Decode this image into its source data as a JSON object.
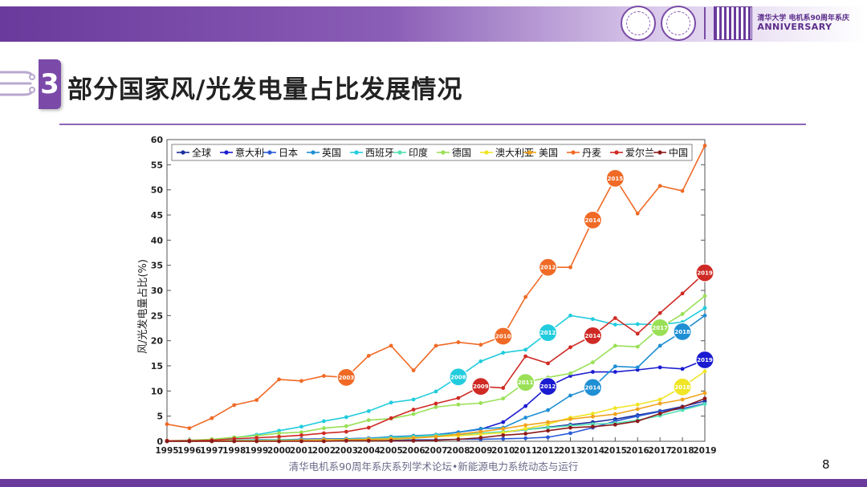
{
  "header": {
    "anniversary_cn": "清华大学 电机系90周年系庆",
    "anniversary_en": "ANNIVERSARY"
  },
  "slide": {
    "section_number": "3",
    "title": "部分国家风/光发电量占比发展情况",
    "footer": "清华电机系90周年系庆系列学术论坛•新能源电力系统动态与运行",
    "page_number": "8"
  },
  "chart_data": {
    "type": "line",
    "ylabel": "风/光发电量占比(%)",
    "xlabel": "",
    "ylim": [
      0,
      60
    ],
    "yticks": [
      0,
      5,
      10,
      15,
      20,
      25,
      30,
      35,
      40,
      45,
      50,
      55,
      60
    ],
    "grid": false,
    "legend_position": "top",
    "categories": [
      "1995",
      "1996",
      "1997",
      "1998",
      "1999",
      "2000",
      "2001",
      "2002",
      "2003",
      "2004",
      "2005",
      "2006",
      "2007",
      "2008",
      "2009",
      "2010",
      "2011",
      "2012",
      "2013",
      "2014",
      "2015",
      "2016",
      "2017",
      "2018",
      "2019"
    ],
    "series": [
      {
        "name": "全球",
        "color": "#1c2f9e",
        "values": [
          0.1,
          0.1,
          0.2,
          0.2,
          0.3,
          0.3,
          0.4,
          0.4,
          0.5,
          0.6,
          0.7,
          0.8,
          1.0,
          1.2,
          1.5,
          1.8,
          2.3,
          2.8,
          3.3,
          3.8,
          4.4,
          5.2,
          6.0,
          6.9,
          8.0
        ]
      },
      {
        "name": "意大利",
        "color": "#1b1bd1",
        "values": [
          0.0,
          0.0,
          0.1,
          0.1,
          0.1,
          0.2,
          0.4,
          0.5,
          0.5,
          0.6,
          0.8,
          1.0,
          1.3,
          1.8,
          2.4,
          3.8,
          7.0,
          10.9,
          13.0,
          13.8,
          13.8,
          14.2,
          14.7,
          14.4,
          16.2
        ]
      },
      {
        "name": "日本",
        "color": "#2a5bd6",
        "values": [
          0.0,
          0.0,
          0.0,
          0.0,
          0.1,
          0.1,
          0.1,
          0.1,
          0.2,
          0.2,
          0.2,
          0.3,
          0.3,
          0.4,
          0.4,
          0.5,
          0.6,
          0.8,
          1.6,
          2.7,
          4.0,
          5.0,
          5.9,
          6.5,
          7.5
        ]
      },
      {
        "name": "英国",
        "color": "#1f8fd4",
        "values": [
          0.1,
          0.1,
          0.2,
          0.2,
          0.3,
          0.3,
          0.3,
          0.4,
          0.5,
          0.6,
          0.9,
          1.1,
          1.3,
          1.8,
          2.5,
          2.7,
          4.7,
          6.2,
          9.1,
          10.7,
          14.9,
          14.7,
          19.0,
          21.8,
          25.0
        ]
      },
      {
        "name": "西班牙",
        "color": "#22ccdd",
        "values": [
          0.1,
          0.2,
          0.3,
          0.7,
          1.3,
          2.1,
          2.9,
          4.0,
          4.8,
          6.0,
          7.7,
          8.3,
          9.9,
          12.8,
          15.9,
          17.6,
          18.2,
          21.6,
          25.0,
          24.3,
          23.2,
          23.3,
          23.2,
          23.7,
          26.5
        ]
      },
      {
        "name": "印度",
        "color": "#55e0b6",
        "values": [
          0.1,
          0.1,
          0.2,
          0.2,
          0.2,
          0.3,
          0.3,
          0.4,
          0.4,
          0.5,
          0.7,
          0.9,
          1.2,
          1.4,
          1.6,
          1.9,
          2.3,
          2.7,
          3.1,
          3.4,
          3.6,
          4.2,
          5.1,
          6.2,
          7.4
        ]
      },
      {
        "name": "德国",
        "color": "#99e056",
        "values": [
          0.1,
          0.2,
          0.4,
          0.8,
          1.1,
          1.6,
          1.8,
          2.6,
          3.0,
          4.2,
          4.5,
          5.4,
          6.8,
          7.3,
          7.6,
          8.5,
          11.7,
          12.7,
          13.5,
          15.7,
          19.0,
          18.8,
          22.6,
          25.3,
          28.9
        ]
      },
      {
        "name": "澳大利亚",
        "color": "#f0e526",
        "values": [
          0.0,
          0.0,
          0.0,
          0.0,
          0.0,
          0.0,
          0.1,
          0.2,
          0.3,
          0.3,
          0.4,
          0.6,
          0.9,
          1.1,
          1.4,
          1.7,
          2.5,
          3.4,
          4.7,
          5.5,
          6.6,
          7.3,
          8.3,
          10.8,
          13.9
        ]
      },
      {
        "name": "美国",
        "color": "#f2a31c",
        "values": [
          0.1,
          0.1,
          0.1,
          0.1,
          0.1,
          0.1,
          0.2,
          0.3,
          0.3,
          0.4,
          0.5,
          0.7,
          0.9,
          1.4,
          1.9,
          2.5,
          3.2,
          3.8,
          4.4,
          4.9,
          5.4,
          6.4,
          7.5,
          8.3,
          9.6
        ]
      },
      {
        "name": "丹麦",
        "color": "#f06a26",
        "values": [
          3.4,
          2.6,
          4.6,
          7.2,
          8.2,
          12.3,
          12.0,
          13.0,
          12.7,
          17.0,
          19.0,
          14.1,
          19.0,
          19.7,
          19.2,
          20.9,
          28.7,
          34.6,
          34.6,
          44.0,
          52.3,
          45.3,
          50.8,
          49.8,
          58.8
        ]
      },
      {
        "name": "爱尔兰",
        "color": "#cf2a25",
        "values": [
          0.1,
          0.1,
          0.2,
          0.5,
          0.7,
          0.9,
          1.2,
          1.6,
          1.9,
          2.7,
          4.6,
          6.3,
          7.5,
          8.6,
          10.9,
          10.6,
          16.9,
          15.5,
          18.7,
          21.0,
          24.5,
          21.4,
          25.5,
          29.4,
          33.5
        ]
      },
      {
        "name": "中国",
        "color": "#8b1a1a",
        "values": [
          0.0,
          0.0,
          0.0,
          0.0,
          0.0,
          0.0,
          0.0,
          0.0,
          0.1,
          0.1,
          0.1,
          0.1,
          0.2,
          0.4,
          0.7,
          1.2,
          1.5,
          2.1,
          2.7,
          2.9,
          3.3,
          4.0,
          5.5,
          6.8,
          8.5
        ]
      }
    ],
    "annotations": [
      {
        "series": "丹麦",
        "x": "2003",
        "label": "2003"
      },
      {
        "series": "丹麦",
        "x": "2010",
        "label": "2010"
      },
      {
        "series": "丹麦",
        "x": "2012",
        "label": "2012"
      },
      {
        "series": "丹麦",
        "x": "2014",
        "label": "2014"
      },
      {
        "series": "丹麦",
        "x": "2015",
        "label": "2015"
      },
      {
        "series": "西班牙",
        "x": "2008",
        "label": "2008"
      },
      {
        "series": "西班牙",
        "x": "2012",
        "label": "2012"
      },
      {
        "series": "爱尔兰",
        "x": "2009",
        "label": "2009"
      },
      {
        "series": "爱尔兰",
        "x": "2014",
        "label": "2014"
      },
      {
        "series": "爱尔兰",
        "x": "2019",
        "label": "2019"
      },
      {
        "series": "德国",
        "x": "2011",
        "label": "2011"
      },
      {
        "series": "德国",
        "x": "2017",
        "label": "2017"
      },
      {
        "series": "意大利",
        "x": "2012",
        "label": "2012"
      },
      {
        "series": "意大利",
        "x": "2019",
        "label": "2019"
      },
      {
        "series": "英国",
        "x": "2014",
        "label": "2014"
      },
      {
        "series": "英国",
        "x": "2018",
        "label": "2018"
      },
      {
        "series": "澳大利亚",
        "x": "2018",
        "label": "2018"
      }
    ]
  }
}
